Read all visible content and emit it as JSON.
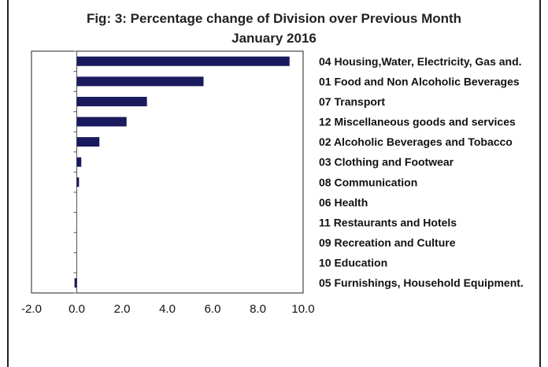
{
  "chart_data": {
    "type": "bar",
    "orientation": "horizontal",
    "title": "Fig: 3: Percentage change of Division over Previous Month",
    "subtitle": "January 2016",
    "categories": [
      "04 Housing,Water, Electricity, Gas and.",
      "01 Food and Non Alcoholic Beverages",
      "07 Transport",
      "12 Miscellaneous goods and services",
      "02 Alcoholic Beverages and Tobacco",
      "03 Clothing and Footwear",
      "08 Communication",
      "06 Health",
      "11 Restaurants and Hotels",
      "09 Recreation and Culture",
      "10 Education",
      "05 Furnishings, Household Equipment."
    ],
    "values": [
      9.4,
      5.6,
      3.1,
      2.2,
      1.0,
      0.2,
      0.1,
      0.0,
      0.0,
      0.0,
      0.0,
      -0.1
    ],
    "xlim": [
      -2.0,
      10.0
    ],
    "xticks": [
      "-2.0",
      "0.0",
      "2.0",
      "4.0",
      "6.0",
      "8.0",
      "10.0"
    ],
    "bar_color": "#1a1a5e",
    "grid": false,
    "legend": "none"
  }
}
